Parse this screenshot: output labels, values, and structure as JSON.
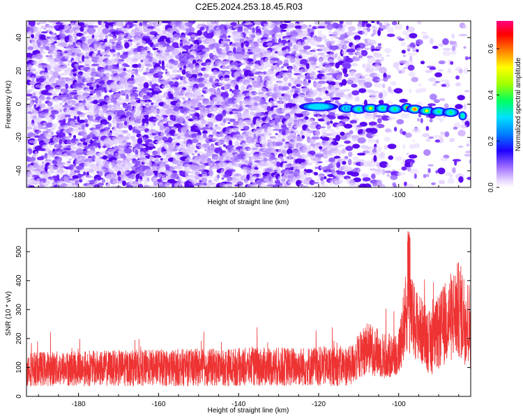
{
  "title": "C2E5.2024.253.18.45.R03",
  "chart_data": [
    {
      "type": "heatmap",
      "name": "spectrogram",
      "xlabel": "Height of straight line (km)",
      "ylabel": "Frequency (Hz)",
      "xlim": [
        -193,
        -82
      ],
      "ylim": [
        -50,
        50
      ],
      "xticks": [
        -180,
        -160,
        -140,
        -120,
        -100
      ],
      "yticks": [
        -40,
        -20,
        0,
        20,
        40
      ],
      "xtick_labels": [
        "-180",
        "-160",
        "-140",
        "-120",
        "-100"
      ],
      "ytick_labels": [
        "-40",
        "-20",
        "0",
        "20",
        "40"
      ],
      "signal_track": {
        "description": "strong band near 0 Hz from about -120 km to -82 km",
        "points": [
          {
            "x": -120,
            "y": -1.5,
            "level": 0.35
          },
          {
            "x": -113,
            "y": -2.5,
            "level": 0.3
          },
          {
            "x": -110,
            "y": -3,
            "level": 0.42
          },
          {
            "x": -107,
            "y": -2.5,
            "level": 0.45
          },
          {
            "x": -104,
            "y": -2.5,
            "level": 0.4
          },
          {
            "x": -101,
            "y": -3,
            "level": 0.38
          },
          {
            "x": -98,
            "y": -2,
            "level": 0.5
          },
          {
            "x": -96,
            "y": -3,
            "level": 0.55
          },
          {
            "x": -93,
            "y": -4,
            "level": 0.45
          },
          {
            "x": -90,
            "y": -4.5,
            "level": 0.4
          },
          {
            "x": -87,
            "y": -5,
            "level": 0.42
          },
          {
            "x": -84,
            "y": -7,
            "level": 0.38
          }
        ]
      },
      "colorbar": {
        "label": "Normalized spectral amplitude",
        "range": [
          0.0,
          0.72
        ],
        "ticks": [
          0.0,
          0.2,
          0.4,
          0.6
        ],
        "tick_labels": [
          "0.0",
          "0.2",
          "0.4",
          "0.6"
        ]
      }
    },
    {
      "type": "line",
      "name": "snr",
      "xlabel": "Height of straight line (km)",
      "ylabel": "SNR (10 * v/v)",
      "xlim": [
        -193,
        -82
      ],
      "ylim": [
        0,
        580
      ],
      "xticks": [
        -180,
        -160,
        -140,
        -120,
        -100
      ],
      "yticks": [
        0,
        100,
        200,
        300,
        400,
        500
      ],
      "xtick_labels": [
        "-180",
        "-160",
        "-140",
        "-120",
        "-100"
      ],
      "ytick_labels": [
        "0",
        "100",
        "200",
        "300",
        "400",
        "500"
      ],
      "series_color": "#ee3333",
      "envelope": [
        {
          "x": -193,
          "mean": 95,
          "spread": 60
        },
        {
          "x": -150,
          "mean": 100,
          "spread": 65
        },
        {
          "x": -112,
          "mean": 105,
          "spread": 70
        },
        {
          "x": -108,
          "mean": 170,
          "spread": 90
        },
        {
          "x": -103,
          "mean": 135,
          "spread": 80
        },
        {
          "x": -100,
          "mean": 150,
          "spread": 80
        },
        {
          "x": -98,
          "mean": 300,
          "spread": 150
        },
        {
          "x": -95,
          "mean": 240,
          "spread": 120
        },
        {
          "x": -92,
          "mean": 180,
          "spread": 110
        },
        {
          "x": -88,
          "mean": 260,
          "spread": 150
        },
        {
          "x": -85,
          "mean": 300,
          "spread": 170
        },
        {
          "x": -82,
          "mean": 240,
          "spread": 150
        }
      ],
      "peak_value": 580
    }
  ]
}
